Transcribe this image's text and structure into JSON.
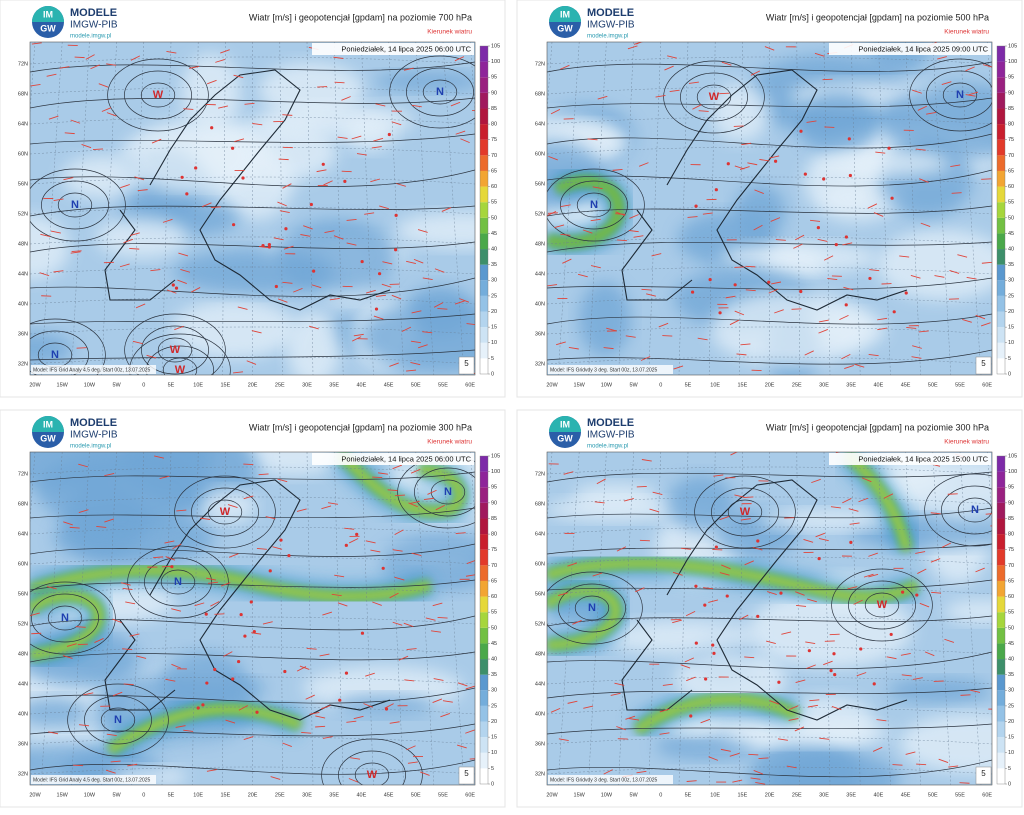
{
  "panels": [
    {
      "logo": {
        "mark_top": "IM",
        "mark_bottom": "GW",
        "name": "MODELE",
        "org": "IMGW-PIB",
        "url": "modele.imgw.pl"
      },
      "title": "Wiatr [m/s] i geopotencjał [gpdam] na poziomie 700 hPa",
      "legend_note": "Kierunek wiatru",
      "timestamp": "Poniedziałek, 14 lipca 2025 06:00 UTC",
      "footer": "Model: IFS Grid Analy 4.5 deg. Start 00z, 13.07.2025",
      "corner_badge": "5",
      "centers": [
        "W",
        "N",
        "N",
        "N",
        "W",
        "W"
      ]
    },
    {
      "logo": {
        "mark_top": "IM",
        "mark_bottom": "GW",
        "name": "MODELE",
        "org": "IMGW-PIB",
        "url": "modele.imgw.pl"
      },
      "title": "Wiatr [m/s] i geopotencjał [gpdam] na poziomie 500 hPa",
      "legend_note": "Kierunek wiatru",
      "timestamp": "Poniedziałek, 14 lipca 2025 09:00 UTC",
      "footer": "Model: IFS Gridvdy 3 deg. Start 00z, 13.07.2025",
      "corner_badge": "5",
      "centers": [
        "W",
        "N",
        "N"
      ]
    },
    {
      "logo": {
        "mark_top": "IM",
        "mark_bottom": "GW",
        "name": "MODELE",
        "org": "IMGW-PIB",
        "url": "modele.imgw.pl"
      },
      "title": "Wiatr [m/s] i geopotencjał [gpdam] na poziomie 300 hPa",
      "legend_note": "Kierunek wiatru",
      "timestamp": "Poniedziałek, 14 lipca 2025 06:00 UTC",
      "footer": "Model: IFS Grid Analy 4.5 deg. Start 00z, 13.07.2025",
      "corner_badge": "5",
      "centers": [
        "W",
        "N",
        "N",
        "N",
        "N",
        "W"
      ]
    },
    {
      "logo": {
        "mark_top": "IM",
        "mark_bottom": "GW",
        "name": "MODELE",
        "org": "IMGW-PIB",
        "url": "modele.imgw.pl"
      },
      "title": "Wiatr [m/s] i geopotencjał [gpdam] na poziomie 300 hPa",
      "legend_note": "Kierunek wiatru",
      "timestamp": "Poniedziałek, 14 lipca 2025 15:00 UTC",
      "footer": "Model: IFS Gridvdy 3 deg. Start 00z, 13.07.2025",
      "corner_badge": "5",
      "centers": [
        "W",
        "N",
        "N",
        "W"
      ]
    }
  ],
  "latitude_labels": [
    "72N",
    "68N",
    "64N",
    "60N",
    "56N",
    "52N",
    "48N",
    "44N",
    "40N",
    "36N",
    "32N"
  ],
  "longitude_labels": [
    "20W",
    "15W",
    "10W",
    "5W",
    "0",
    "5E",
    "10E",
    "15E",
    "20E",
    "25E",
    "30E",
    "35E",
    "40E",
    "45E",
    "50E",
    "55E",
    "60E"
  ],
  "colorbar": {
    "ticks": [
      0,
      5,
      10,
      15,
      20,
      25,
      30,
      35,
      40,
      45,
      50,
      55,
      60,
      65,
      70,
      75,
      80,
      85,
      90,
      95,
      100,
      105
    ],
    "colors": [
      "#ffffff",
      "#e6f1fa",
      "#cde3f4",
      "#b3d4ee",
      "#94c2e6",
      "#74addb",
      "#5a98cf",
      "#3d8f6a",
      "#4aa84a",
      "#72c043",
      "#a6d63c",
      "#e5d83a",
      "#f2a533",
      "#ec6b2c",
      "#e23a2a",
      "#c91f2e",
      "#b0163e",
      "#a01a5e",
      "#9a2080",
      "#8e259a",
      "#7d2aa8"
    ]
  }
}
